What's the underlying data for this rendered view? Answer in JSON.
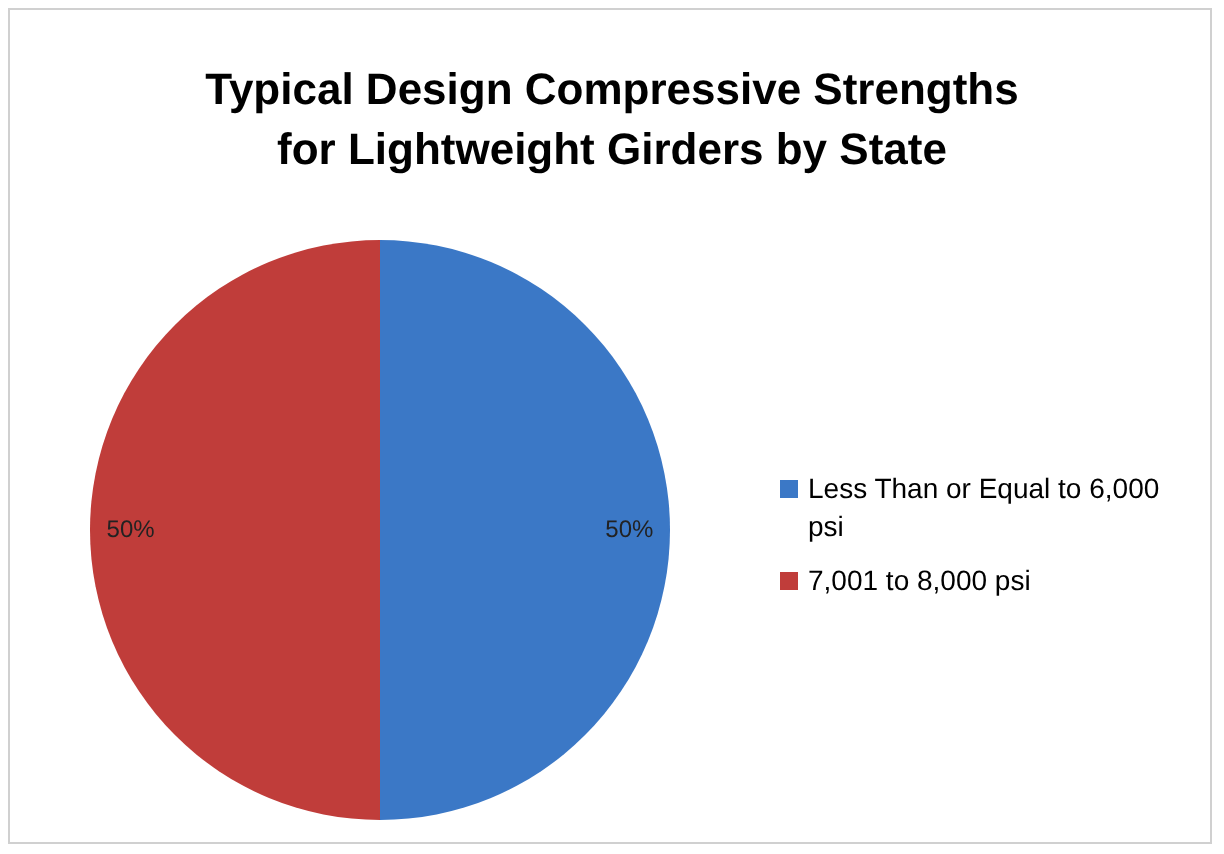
{
  "chart_data": {
    "type": "pie",
    "title": "Typical Design Compressive Strengths for Lightweight Girders by State",
    "categories": [
      "Less Than or Equal to 6,000 psi",
      "7,001 to 8,000 psi"
    ],
    "values": [
      50,
      50
    ],
    "colors": [
      "#3b78c6",
      "#c03d3a"
    ],
    "value_labels": [
      "50%",
      "50%"
    ],
    "legend": "right"
  }
}
